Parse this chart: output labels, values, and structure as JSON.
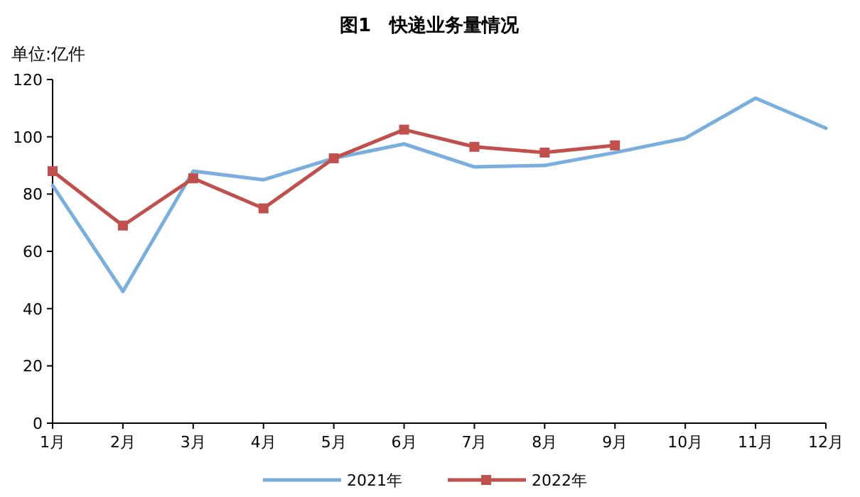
{
  "chart_data": {
    "type": "line",
    "title": "图1　快递业务量情况",
    "ylabel": "单位:亿件",
    "categories": [
      "1月",
      "2月",
      "3月",
      "4月",
      "5月",
      "6月",
      "7月",
      "8月",
      "9月",
      "10月",
      "11月",
      "12月"
    ],
    "series": [
      {
        "name": "2021年",
        "color": "#7aaedc",
        "marker": "none",
        "values": [
          83,
          46,
          88,
          85,
          92.5,
          97.5,
          89.5,
          90,
          94.5,
          99.5,
          113.5,
          103
        ]
      },
      {
        "name": "2022年",
        "color": "#c0504d",
        "marker": "square",
        "values": [
          88,
          69,
          85.5,
          75,
          92.5,
          102.5,
          96.5,
          94.5,
          97,
          null,
          null,
          null
        ]
      }
    ],
    "ylim": [
      0,
      120
    ],
    "yticks": [
      0,
      20,
      40,
      60,
      80,
      100,
      120
    ],
    "grid": false,
    "legend": "bottom"
  }
}
